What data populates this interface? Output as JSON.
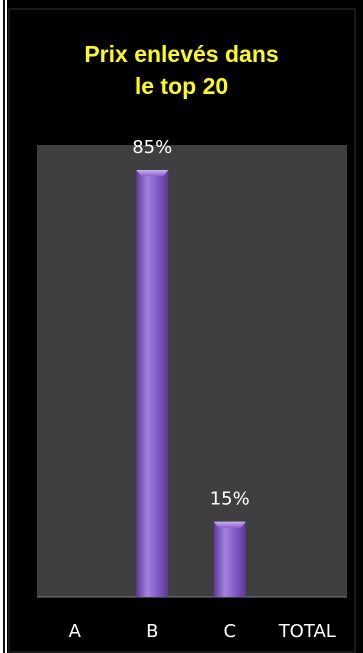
{
  "chart_data": {
    "type": "bar",
    "title": "Prix enlevés dans\nle top 20",
    "categories": [
      "A",
      "B",
      "C",
      "TOTAL"
    ],
    "values": [
      0,
      85,
      15,
      0
    ],
    "data_labels": [
      "",
      "85%",
      "15%",
      ""
    ],
    "ylim": [
      0,
      100
    ],
    "grid": false,
    "legend": "none",
    "colors": {
      "background": "#000000",
      "plot_area": "#3f3f3f",
      "bar_light": "#b79be6",
      "bar_mid": "#8a62cf",
      "bar_dark": "#5b3a99",
      "title": "#ffff00",
      "text": "#ffffff"
    }
  }
}
